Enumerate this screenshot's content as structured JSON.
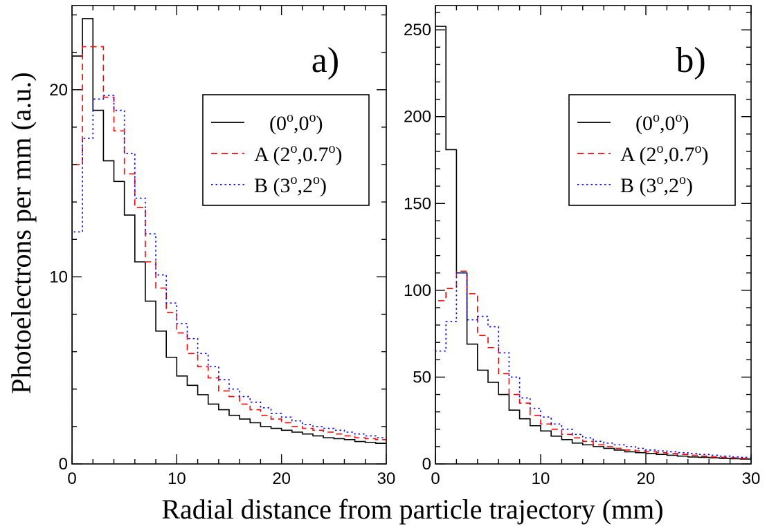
{
  "figure": {
    "xlabel": "Radial distance from particle trajectory (mm)",
    "ylabel": "Photoelectrons per mm (a.u.)"
  },
  "chart_data": [
    {
      "type": "line",
      "panel_label": "a)",
      "xlim": [
        0,
        30
      ],
      "ylim": [
        0,
        24.5
      ],
      "x_ticks": [
        0,
        10,
        20,
        30
      ],
      "y_ticks": [
        0,
        10,
        20
      ],
      "legend_position": "top-right",
      "bin_edges": [
        0,
        1,
        2,
        3,
        4,
        5,
        6,
        7,
        8,
        9,
        10,
        11,
        12,
        13,
        14,
        15,
        16,
        17,
        18,
        19,
        20,
        21,
        22,
        23,
        24,
        25,
        26,
        27,
        28,
        29,
        30
      ],
      "series": [
        {
          "name": "(0o,0o)",
          "label_main": "(0",
          "label_sup1": "o",
          "label_mid": ",0",
          "label_sup2": "o",
          "label_end": ")",
          "color": "#000000",
          "dash": "solid",
          "values": [
            21.8,
            23.8,
            18.9,
            16.2,
            15.1,
            13.3,
            10.8,
            8.7,
            7.1,
            5.7,
            4.7,
            4.2,
            3.7,
            3.2,
            2.9,
            2.6,
            2.4,
            2.2,
            2.0,
            1.9,
            1.8,
            1.7,
            1.6,
            1.5,
            1.4,
            1.35,
            1.3,
            1.2,
            1.15,
            1.1
          ]
        },
        {
          "name": "A (2o,0.7o)",
          "label_main": "A (2",
          "label_sup1": "o",
          "label_mid": ",0.7",
          "label_sup2": "o",
          "label_end": ")",
          "color": "#ff0000",
          "dash": "dashed",
          "values": [
            16.0,
            22.3,
            22.3,
            19.6,
            17.8,
            15.5,
            13.7,
            10.8,
            9.4,
            8.1,
            7.0,
            5.9,
            5.2,
            4.6,
            3.9,
            3.6,
            3.2,
            2.9,
            2.6,
            2.4,
            2.2,
            2.0,
            1.9,
            1.8,
            1.7,
            1.6,
            1.5,
            1.4,
            1.35,
            1.3
          ]
        },
        {
          "name": "B (3o,2o)",
          "label_main": "B (3",
          "label_sup1": "o",
          "label_mid": ",2",
          "label_sup2": "o",
          "label_end": ")",
          "color": "#0000ff",
          "dash": "dotted",
          "values": [
            12.4,
            17.4,
            19.5,
            19.7,
            18.9,
            16.6,
            14.2,
            12.3,
            10.1,
            8.6,
            7.5,
            6.7,
            5.9,
            5.2,
            4.5,
            4.0,
            3.6,
            3.3,
            3.0,
            2.7,
            2.5,
            2.3,
            2.1,
            2.0,
            1.9,
            1.8,
            1.7,
            1.6,
            1.5,
            1.4
          ]
        }
      ]
    },
    {
      "type": "line",
      "panel_label": "b)",
      "xlim": [
        0,
        30
      ],
      "ylim": [
        0,
        264
      ],
      "x_ticks": [
        0,
        10,
        20,
        30
      ],
      "y_ticks": [
        0,
        50,
        100,
        150,
        200,
        250
      ],
      "legend_position": "top-right",
      "bin_edges": [
        0,
        1,
        2,
        3,
        4,
        5,
        6,
        7,
        8,
        9,
        10,
        11,
        12,
        13,
        14,
        15,
        16,
        17,
        18,
        19,
        20,
        21,
        22,
        23,
        24,
        25,
        26,
        27,
        28,
        29,
        30
      ],
      "series": [
        {
          "name": "(0o,0o)",
          "label_main": "(0",
          "label_sup1": "o",
          "label_mid": ",0",
          "label_sup2": "o",
          "label_end": ")",
          "color": "#000000",
          "dash": "solid",
          "values": [
            252,
            181,
            110,
            69,
            54,
            47,
            40,
            31,
            26,
            22,
            19,
            16,
            14,
            12,
            11,
            10,
            9,
            8,
            7,
            6.5,
            6,
            5.5,
            5,
            4.5,
            4,
            3.8,
            3.5,
            3.2,
            3,
            2.8
          ]
        },
        {
          "name": "A (2o,0.7o)",
          "label_main": "A (2",
          "label_sup1": "o",
          "label_mid": ",0.7",
          "label_sup2": "o",
          "label_end": ")",
          "color": "#ff0000",
          "dash": "dashed",
          "values": [
            94,
            101,
            111,
            98,
            74,
            67,
            52,
            40,
            35,
            28,
            23,
            20,
            17,
            15,
            13,
            11,
            10,
            9,
            8,
            7.5,
            7,
            6.5,
            6,
            5.5,
            5,
            4.5,
            4,
            3.8,
            3.5,
            3.2
          ]
        },
        {
          "name": "B (3o,2o)",
          "label_main": "B (3",
          "label_sup1": "o",
          "label_mid": ",2",
          "label_sup2": "o",
          "label_end": ")",
          "color": "#0000ff",
          "dash": "dotted",
          "values": [
            65,
            82,
            110,
            83,
            85,
            79,
            64,
            50,
            38,
            32,
            27,
            23,
            20,
            17,
            15,
            13,
            12,
            11,
            10,
            9,
            8,
            7.5,
            7,
            6.5,
            6,
            5.5,
            5,
            4.5,
            4,
            3.8
          ]
        }
      ]
    }
  ]
}
